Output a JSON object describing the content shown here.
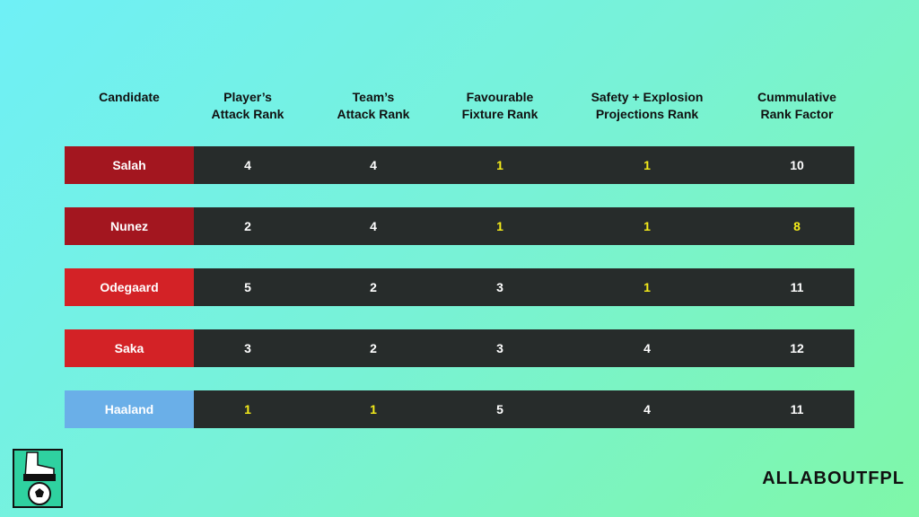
{
  "table": {
    "columns": [
      [
        "Candidate"
      ],
      [
        "Player’s",
        "Attack Rank"
      ],
      [
        "Team’s",
        "Attack Rank"
      ],
      [
        "Favourable",
        "Fixture Rank"
      ],
      [
        "Safety + Explosion",
        "Projections Rank"
      ],
      [
        "Cummulative",
        "Rank Factor"
      ]
    ],
    "rows": [
      {
        "name": "Salah",
        "color": "#a3161f",
        "values": [
          4,
          4,
          1,
          1,
          10
        ],
        "value_colors": [
          "#ffffff",
          "#ffffff",
          "#f5ec1a",
          "#f5ec1a",
          "#ffffff"
        ]
      },
      {
        "name": "Nunez",
        "color": "#a3161f",
        "values": [
          2,
          4,
          1,
          1,
          8
        ],
        "value_colors": [
          "#ffffff",
          "#ffffff",
          "#f5ec1a",
          "#f5ec1a",
          "#f5ec1a"
        ]
      },
      {
        "name": "Odegaard",
        "color": "#d32226",
        "values": [
          5,
          2,
          3,
          1,
          11
        ],
        "value_colors": [
          "#ffffff",
          "#ffffff",
          "#ffffff",
          "#f5ec1a",
          "#ffffff"
        ]
      },
      {
        "name": "Saka",
        "color": "#d32226",
        "values": [
          3,
          2,
          3,
          4,
          12
        ],
        "value_colors": [
          "#ffffff",
          "#ffffff",
          "#ffffff",
          "#ffffff",
          "#ffffff"
        ]
      },
      {
        "name": "Haaland",
        "color": "#6aafe8",
        "values": [
          1,
          1,
          5,
          4,
          11
        ],
        "value_colors": [
          "#f5ec1a",
          "#f5ec1a",
          "#ffffff",
          "#ffffff",
          "#ffffff"
        ]
      }
    ]
  },
  "brand": "ALLABOUTFPL"
}
